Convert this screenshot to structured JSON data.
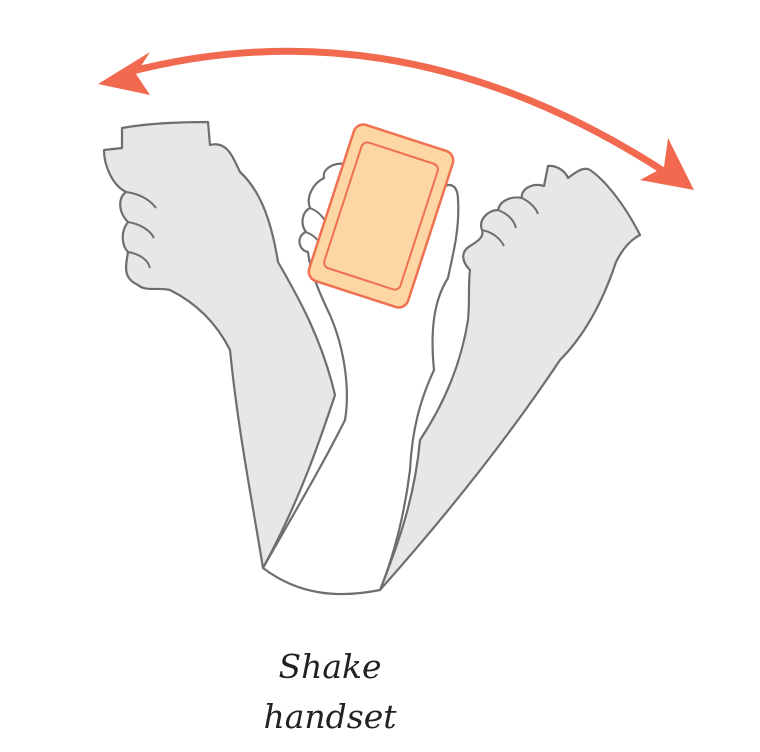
{
  "caption": {
    "line1": "Shake",
    "line2": "handset"
  },
  "colors": {
    "arrow": "#f16a50",
    "ghost_arm_fill": "#e6e7e6",
    "arm_outline": "#6e6e6e",
    "phone_body": "#fcd6a3",
    "phone_outline": "#ef7150"
  },
  "icons": {
    "arrow": "double-headed-curved-arrow",
    "left_ghost": "raised-fist-left",
    "right_ghost": "raised-fist-right",
    "center_arm": "hand-holding-phone",
    "phone": "mobile-handset"
  }
}
